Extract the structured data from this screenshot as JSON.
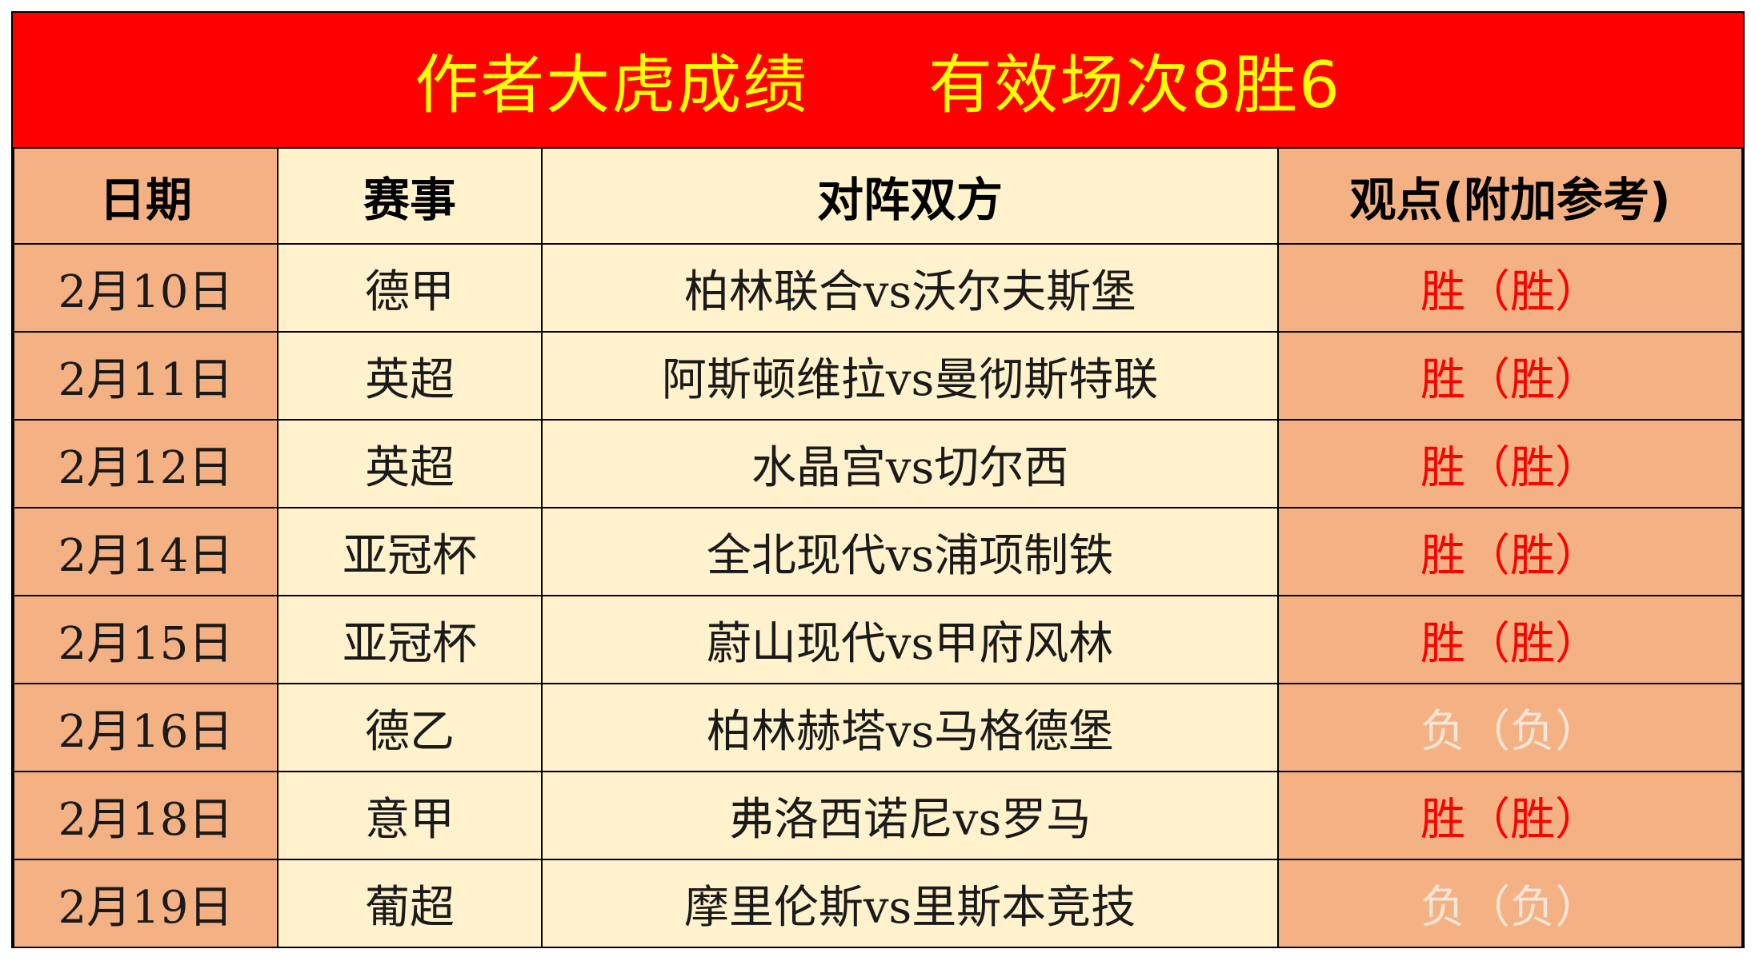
{
  "banner": {
    "left_text": "作者大虎成绩",
    "right_text": "有效场次8胜6",
    "background": "#ff0000",
    "text_color": "#ffff00"
  },
  "table": {
    "headers": {
      "date": "日期",
      "league": "赛事",
      "match": "对阵双方",
      "view": "观点(附加参考)"
    },
    "colors": {
      "header_bg": "#9dc3e6",
      "date_bg": "#f4b183",
      "league_match_bg": "#fff2cc",
      "view_bg": "#f4b183",
      "win_text": "#ff0000",
      "loss_text": "#fbe5d6"
    },
    "rows": [
      {
        "date": "2月10日",
        "league": "德甲",
        "match": "柏林联合vs沃尔夫斯堡",
        "view": "胜（胜）",
        "result": "win"
      },
      {
        "date": "2月11日",
        "league": "英超",
        "match": "阿斯顿维拉vs曼彻斯特联",
        "view": "胜（胜）",
        "result": "win"
      },
      {
        "date": "2月12日",
        "league": "英超",
        "match": "水晶宫vs切尔西",
        "view": "胜（胜）",
        "result": "win"
      },
      {
        "date": "2月14日",
        "league": "亚冠杯",
        "match": "全北现代vs浦项制铁",
        "view": "胜（胜）",
        "result": "win"
      },
      {
        "date": "2月15日",
        "league": "亚冠杯",
        "match": "蔚山现代vs甲府风林",
        "view": "胜（胜）",
        "result": "win"
      },
      {
        "date": "2月16日",
        "league": "德乙",
        "match": "柏林赫塔vs马格德堡",
        "view": "负（负）",
        "result": "loss"
      },
      {
        "date": "2月18日",
        "league": "意甲",
        "match": "弗洛西诺尼vs罗马",
        "view": "胜（胜）",
        "result": "win"
      },
      {
        "date": "2月19日",
        "league": "葡超",
        "match": "摩里伦斯vs里斯本竞技",
        "view": "负（负）",
        "result": "loss"
      }
    ]
  }
}
